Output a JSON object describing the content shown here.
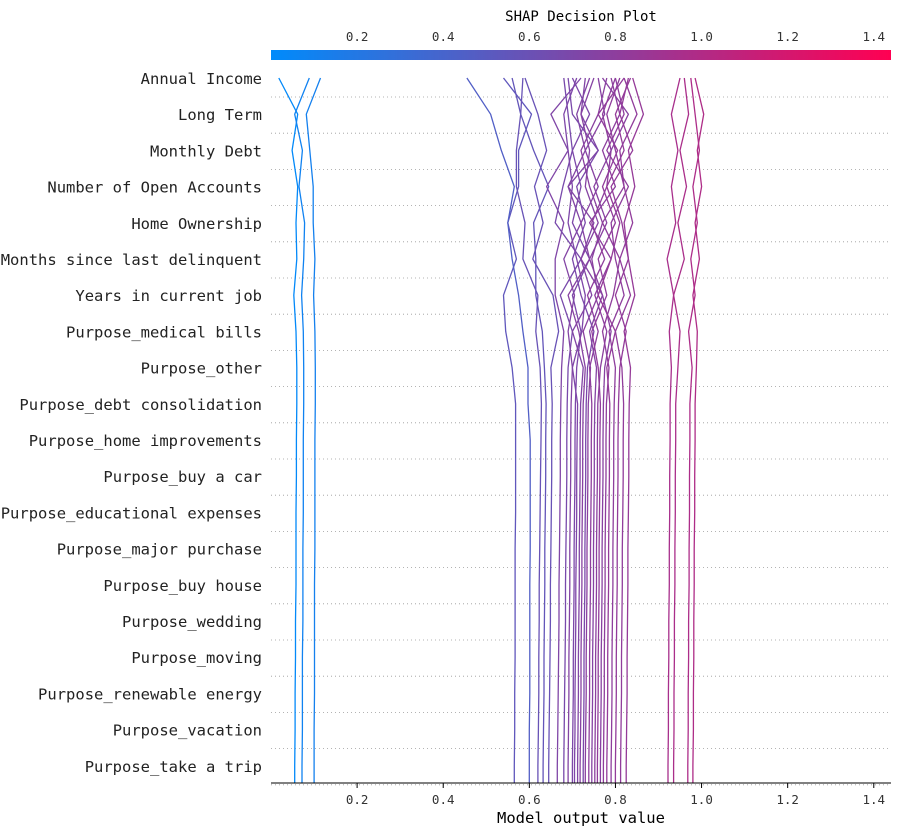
{
  "chart_data": {
    "type": "line",
    "title": "SHAP Decision Plot",
    "xlabel": "Model output value",
    "ylabel": "",
    "xlim": [
      0.0,
      1.44
    ],
    "xticks": [
      0.2,
      0.4,
      0.6,
      0.8,
      1.0,
      1.2,
      1.4
    ],
    "xtick_labels": [
      "0.2",
      "0.4",
      "0.6",
      "0.8",
      "1.0",
      "1.2",
      "1.4"
    ],
    "colorbar": {
      "from": "#008bfb",
      "to": "#ff0052",
      "position": "top"
    },
    "features": [
      "Annual Income",
      "Long Term",
      "Monthly Debt",
      "Number of Open Accounts",
      "Home Ownership",
      "Months since last delinquent",
      "Years in current job",
      "Purpose_medical bills",
      "Purpose_other",
      "Purpose_debt consolidation",
      "Purpose_home improvements",
      "Purpose_buy a car",
      "Purpose_educational expenses",
      "Purpose_major purchase",
      "Purpose_buy house",
      "Purpose_wedding",
      "Purpose_moving",
      "Purpose_renewable energy",
      "Purpose_vacation",
      "Purpose_take a trip"
    ],
    "series_note": "Each series lists cumulative model output values starting at the base value (bottom), then after each feature from 'Purpose_take a trip' up to 'Annual Income' (top).",
    "series": [
      {
        "name": "obs-1",
        "values": [
          0.055,
          0.055,
          0.056,
          0.056,
          0.057,
          0.057,
          0.058,
          0.058,
          0.058,
          0.059,
          0.059,
          0.06,
          0.06,
          0.058,
          0.053,
          0.06,
          0.058,
          0.062,
          0.049,
          0.062,
          0.018
        ]
      },
      {
        "name": "obs-2",
        "values": [
          0.072,
          0.072,
          0.073,
          0.073,
          0.073,
          0.074,
          0.074,
          0.074,
          0.075,
          0.075,
          0.075,
          0.076,
          0.076,
          0.075,
          0.071,
          0.076,
          0.078,
          0.065,
          0.073,
          0.055,
          0.089
        ]
      },
      {
        "name": "obs-3",
        "values": [
          0.1,
          0.1,
          0.1,
          0.101,
          0.101,
          0.101,
          0.101,
          0.102,
          0.102,
          0.102,
          0.102,
          0.103,
          0.103,
          0.102,
          0.099,
          0.102,
          0.098,
          0.098,
          0.09,
          0.082,
          0.115
        ]
      },
      {
        "name": "obs-4",
        "values": [
          0.565,
          0.565,
          0.566,
          0.566,
          0.567,
          0.567,
          0.567,
          0.567,
          0.568,
          0.568,
          0.568,
          0.568,
          0.56,
          0.545,
          0.54,
          0.57,
          0.55,
          0.575,
          0.575,
          0.605,
          0.54
        ]
      },
      {
        "name": "obs-5",
        "values": [
          0.6,
          0.6,
          0.6,
          0.601,
          0.601,
          0.601,
          0.601,
          0.602,
          0.602,
          0.602,
          0.602,
          0.597,
          0.597,
          0.585,
          0.575,
          0.56,
          0.55,
          0.565,
          0.535,
          0.51,
          0.455
        ]
      },
      {
        "name": "obs-6",
        "values": [
          0.62,
          0.62,
          0.621,
          0.622,
          0.622,
          0.623,
          0.623,
          0.624,
          0.625,
          0.626,
          0.627,
          0.628,
          0.625,
          0.615,
          0.62,
          0.585,
          0.59,
          0.57,
          0.57,
          0.58,
          0.585
        ]
      },
      {
        "name": "obs-7",
        "values": [
          0.632,
          0.632,
          0.633,
          0.634,
          0.634,
          0.635,
          0.636,
          0.636,
          0.637,
          0.638,
          0.638,
          0.639,
          0.635,
          0.63,
          0.615,
          0.615,
          0.61,
          0.645,
          0.61,
          0.58,
          0.56
        ]
      },
      {
        "name": "obs-8",
        "values": [
          0.645,
          0.645,
          0.646,
          0.647,
          0.648,
          0.649,
          0.649,
          0.65,
          0.651,
          0.652,
          0.652,
          0.653,
          0.65,
          0.668,
          0.655,
          0.608,
          0.632,
          0.612,
          0.64,
          0.62,
          0.59
        ]
      },
      {
        "name": "obs-9",
        "values": [
          0.665,
          0.665,
          0.666,
          0.667,
          0.668,
          0.669,
          0.669,
          0.67,
          0.671,
          0.672,
          0.672,
          0.673,
          0.675,
          0.68,
          0.66,
          0.66,
          0.68,
          0.64,
          0.69,
          0.65,
          0.72
        ]
      },
      {
        "name": "obs-10",
        "values": [
          0.68,
          0.68,
          0.681,
          0.682,
          0.683,
          0.684,
          0.684,
          0.685,
          0.686,
          0.687,
          0.687,
          0.688,
          0.69,
          0.7,
          0.672,
          0.72,
          0.66,
          0.678,
          0.7,
          0.69,
          0.68
        ]
      },
      {
        "name": "obs-11",
        "values": [
          0.69,
          0.69,
          0.691,
          0.692,
          0.692,
          0.693,
          0.694,
          0.694,
          0.695,
          0.696,
          0.696,
          0.697,
          0.7,
          0.69,
          0.705,
          0.68,
          0.72,
          0.69,
          0.73,
          0.71,
          0.74
        ]
      },
      {
        "name": "obs-12",
        "values": [
          0.7,
          0.7,
          0.701,
          0.702,
          0.702,
          0.703,
          0.704,
          0.704,
          0.705,
          0.706,
          0.706,
          0.707,
          0.71,
          0.72,
          0.7,
          0.74,
          0.7,
          0.72,
          0.7,
          0.74,
          0.7
        ]
      },
      {
        "name": "obs-13",
        "values": [
          0.705,
          0.705,
          0.706,
          0.706,
          0.707,
          0.708,
          0.708,
          0.709,
          0.71,
          0.71,
          0.711,
          0.712,
          0.7,
          0.722,
          0.73,
          0.71,
          0.69,
          0.7,
          0.69,
          0.68,
          0.71
        ]
      },
      {
        "name": "obs-14",
        "values": [
          0.712,
          0.712,
          0.713,
          0.714,
          0.714,
          0.715,
          0.716,
          0.716,
          0.717,
          0.718,
          0.718,
          0.719,
          0.725,
          0.7,
          0.745,
          0.72,
          0.75,
          0.69,
          0.76,
          0.72,
          0.73
        ]
      },
      {
        "name": "obs-15",
        "values": [
          0.718,
          0.718,
          0.719,
          0.72,
          0.72,
          0.721,
          0.722,
          0.722,
          0.723,
          0.724,
          0.724,
          0.725,
          0.73,
          0.715,
          0.69,
          0.74,
          0.72,
          0.76,
          0.73,
          0.775,
          0.76
        ]
      },
      {
        "name": "obs-16",
        "values": [
          0.725,
          0.725,
          0.726,
          0.727,
          0.727,
          0.728,
          0.729,
          0.729,
          0.73,
          0.731,
          0.731,
          0.732,
          0.735,
          0.75,
          0.72,
          0.7,
          0.73,
          0.71,
          0.76,
          0.7,
          0.69
        ]
      },
      {
        "name": "obs-17",
        "values": [
          0.73,
          0.73,
          0.731,
          0.732,
          0.732,
          0.733,
          0.734,
          0.734,
          0.735,
          0.736,
          0.736,
          0.737,
          0.742,
          0.725,
          0.76,
          0.745,
          0.77,
          0.74,
          0.72,
          0.76,
          0.78
        ]
      },
      {
        "name": "obs-18",
        "values": [
          0.738,
          0.738,
          0.739,
          0.74,
          0.74,
          0.741,
          0.742,
          0.742,
          0.743,
          0.744,
          0.744,
          0.745,
          0.74,
          0.76,
          0.735,
          0.775,
          0.745,
          0.78,
          0.79,
          0.77,
          0.8
        ]
      },
      {
        "name": "obs-19",
        "values": [
          0.745,
          0.745,
          0.746,
          0.747,
          0.747,
          0.748,
          0.749,
          0.749,
          0.75,
          0.751,
          0.751,
          0.752,
          0.756,
          0.74,
          0.77,
          0.72,
          0.76,
          0.73,
          0.74,
          0.72,
          0.75
        ]
      },
      {
        "name": "obs-20",
        "values": [
          0.752,
          0.752,
          0.753,
          0.754,
          0.754,
          0.755,
          0.756,
          0.756,
          0.757,
          0.758,
          0.758,
          0.759,
          0.765,
          0.78,
          0.752,
          0.79,
          0.74,
          0.8,
          0.77,
          0.81,
          0.79
        ]
      },
      {
        "name": "obs-21",
        "values": [
          0.758,
          0.758,
          0.759,
          0.76,
          0.76,
          0.761,
          0.762,
          0.762,
          0.763,
          0.764,
          0.764,
          0.765,
          0.76,
          0.745,
          0.78,
          0.76,
          0.8,
          0.77,
          0.805,
          0.76,
          0.82
        ]
      },
      {
        "name": "obs-22",
        "values": [
          0.765,
          0.765,
          0.766,
          0.767,
          0.767,
          0.768,
          0.769,
          0.769,
          0.77,
          0.771,
          0.771,
          0.772,
          0.775,
          0.79,
          0.77,
          0.74,
          0.78,
          0.75,
          0.79,
          0.83,
          0.77
        ]
      },
      {
        "name": "obs-23",
        "values": [
          0.772,
          0.772,
          0.773,
          0.774,
          0.774,
          0.775,
          0.776,
          0.776,
          0.777,
          0.778,
          0.778,
          0.779,
          0.785,
          0.77,
          0.795,
          0.81,
          0.77,
          0.82,
          0.8,
          0.78,
          0.81
        ]
      },
      {
        "name": "obs-24",
        "values": [
          0.78,
          0.78,
          0.781,
          0.782,
          0.782,
          0.783,
          0.784,
          0.784,
          0.785,
          0.786,
          0.786,
          0.787,
          0.78,
          0.8,
          0.76,
          0.79,
          0.81,
          0.78,
          0.82,
          0.8,
          0.835
        ]
      },
      {
        "name": "obs-25",
        "values": [
          0.79,
          0.79,
          0.791,
          0.792,
          0.792,
          0.793,
          0.794,
          0.794,
          0.795,
          0.796,
          0.796,
          0.797,
          0.8,
          0.785,
          0.82,
          0.8,
          0.79,
          0.83,
          0.78,
          0.82,
          0.8
        ]
      },
      {
        "name": "obs-26",
        "values": [
          0.8,
          0.8,
          0.801,
          0.802,
          0.802,
          0.803,
          0.804,
          0.804,
          0.805,
          0.806,
          0.806,
          0.807,
          0.81,
          0.825,
          0.8,
          0.83,
          0.815,
          0.79,
          0.84,
          0.81,
          0.83
        ]
      },
      {
        "name": "obs-27",
        "values": [
          0.812,
          0.812,
          0.813,
          0.814,
          0.814,
          0.815,
          0.816,
          0.816,
          0.817,
          0.818,
          0.818,
          0.819,
          0.815,
          0.8,
          0.835,
          0.81,
          0.84,
          0.82,
          0.81,
          0.85,
          0.82
        ]
      },
      {
        "name": "obs-28",
        "values": [
          0.825,
          0.825,
          0.826,
          0.827,
          0.827,
          0.828,
          0.829,
          0.829,
          0.83,
          0.831,
          0.831,
          0.832,
          0.835,
          0.82,
          0.845,
          0.83,
          0.82,
          0.845,
          0.83,
          0.865,
          0.84
        ]
      },
      {
        "name": "obs-29",
        "values": [
          0.922,
          0.922,
          0.923,
          0.923,
          0.924,
          0.924,
          0.925,
          0.925,
          0.926,
          0.926,
          0.927,
          0.927,
          0.93,
          0.925,
          0.935,
          0.92,
          0.94,
          0.93,
          0.945,
          0.93,
          0.95
        ]
      },
      {
        "name": "obs-30",
        "values": [
          0.935,
          0.935,
          0.936,
          0.936,
          0.937,
          0.937,
          0.938,
          0.938,
          0.939,
          0.939,
          0.94,
          0.94,
          0.945,
          0.95,
          0.935,
          0.96,
          0.945,
          0.965,
          0.95,
          0.97,
          0.96
        ]
      },
      {
        "name": "obs-31",
        "values": [
          0.968,
          0.968,
          0.969,
          0.969,
          0.97,
          0.97,
          0.971,
          0.971,
          0.972,
          0.972,
          0.973,
          0.973,
          0.978,
          0.97,
          0.985,
          0.975,
          0.99,
          0.98,
          0.995,
          0.985,
          0.975
        ]
      },
      {
        "name": "obs-32",
        "values": [
          0.98,
          0.98,
          0.981,
          0.981,
          0.982,
          0.982,
          0.983,
          0.983,
          0.984,
          0.984,
          0.985,
          0.985,
          0.988,
          0.99,
          0.98,
          0.995,
          0.985,
          1.0,
          0.99,
          1.005,
          0.985
        ]
      }
    ]
  }
}
